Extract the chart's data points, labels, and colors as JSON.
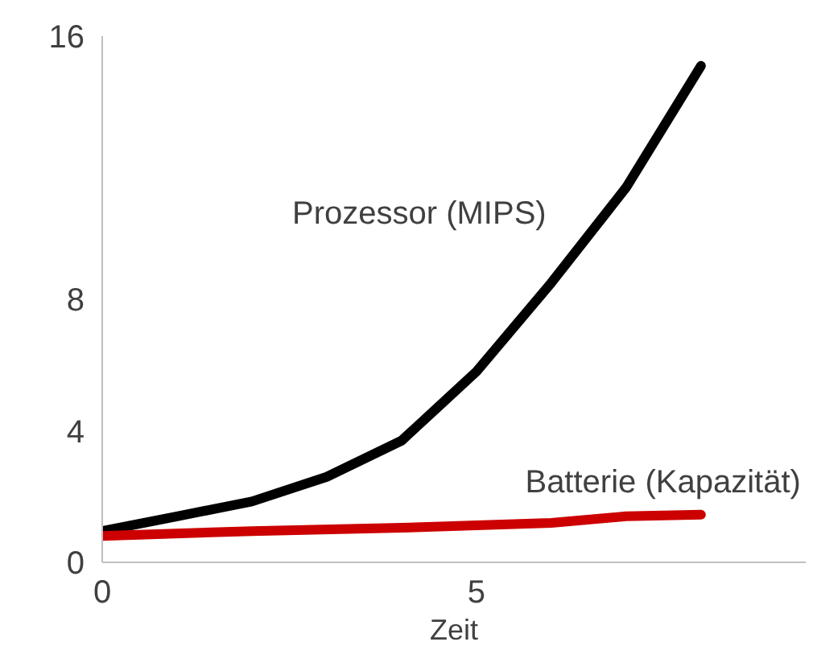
{
  "chart_data": {
    "type": "line",
    "xlabel": "Zeit",
    "xlim": [
      0,
      9.4
    ],
    "ylim": [
      0,
      16
    ],
    "xticks": [
      0,
      5
    ],
    "yticks": [
      0,
      4,
      8,
      16
    ],
    "grid": false,
    "marker": "none",
    "line_style": "solid",
    "series": [
      {
        "name": "Prozessor (MIPS)",
        "color": "#000000",
        "x": [
          0,
          1,
          2,
          3,
          4,
          5,
          6,
          7,
          8
        ],
        "values": [
          0.95,
          1.4,
          1.85,
          2.6,
          3.7,
          5.8,
          8.5,
          11.4,
          15.1
        ]
      },
      {
        "name": "Batterie (Kapazität)",
        "color": "#cc0000",
        "x": [
          0,
          2,
          4,
          6,
          7,
          8
        ],
        "values": [
          0.8,
          0.95,
          1.05,
          1.2,
          1.4,
          1.45
        ]
      }
    ]
  }
}
